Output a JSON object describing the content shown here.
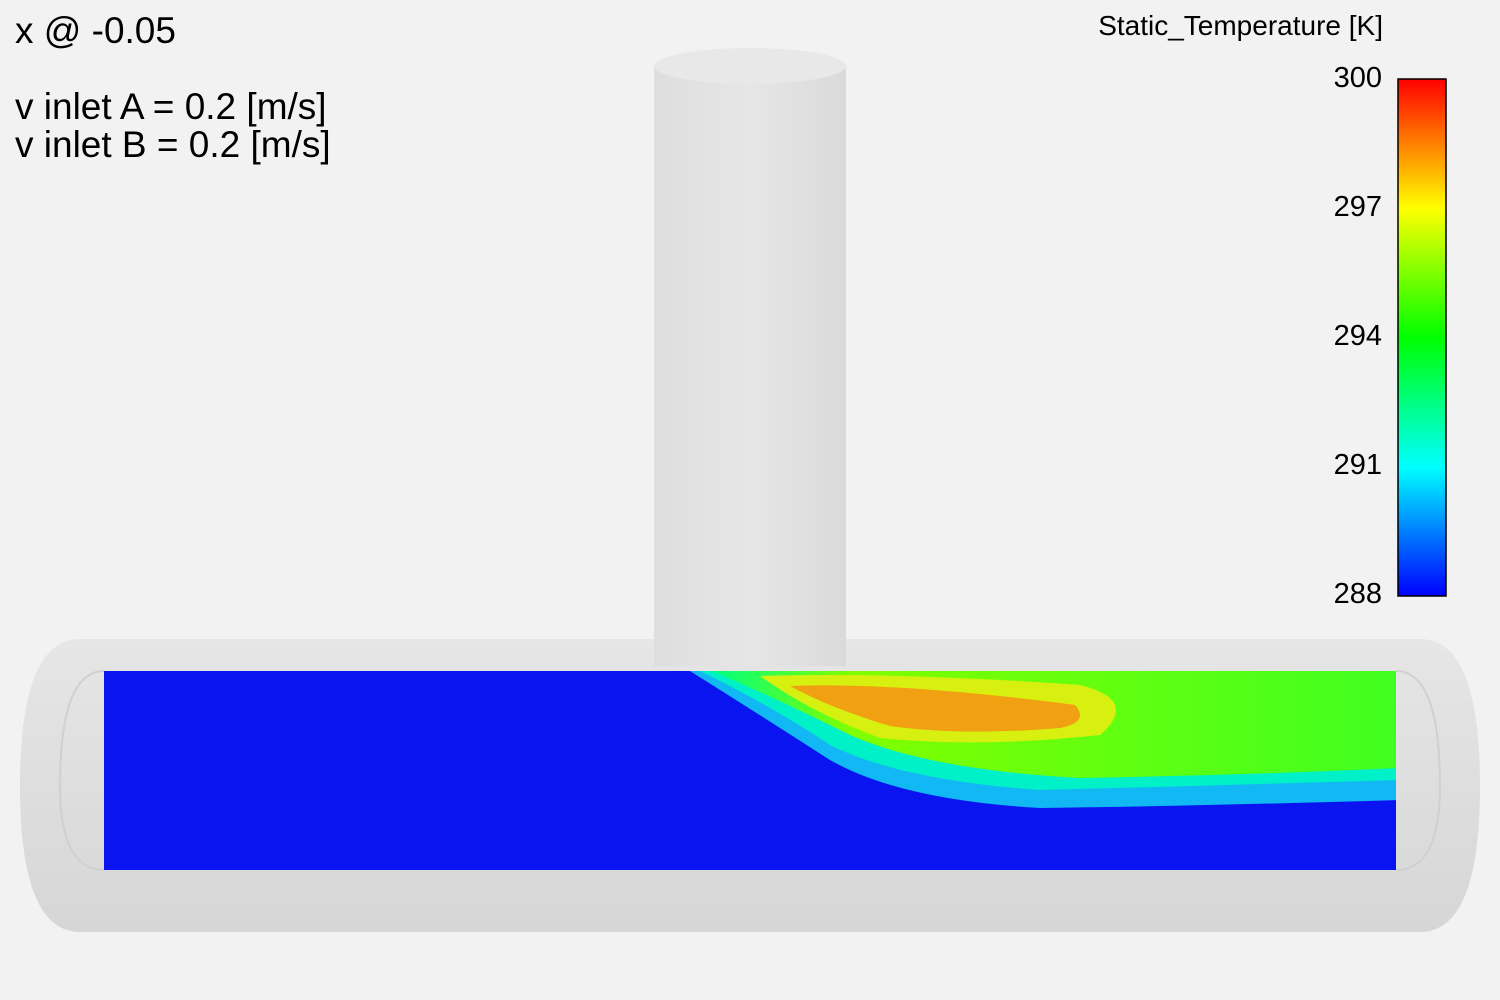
{
  "annotations": {
    "section": "x @ -0.05",
    "inlet_a": "v inlet A = 0.2 [m/s]",
    "inlet_b": "v inlet B = 0.2 [m/s]"
  },
  "legend": {
    "title": "Static_Temperature [K]",
    "variable": "Static_Temperature",
    "unit": "K",
    "min": 288,
    "max": 300,
    "ticks": [
      "300",
      "297",
      "294",
      "291",
      "288"
    ],
    "colormap": [
      "#0000ff",
      "#00ffff",
      "#00ff00",
      "#ffff00",
      "#ff0000"
    ]
  },
  "colors": {
    "background": "#f2f2f2",
    "pipe": "#dcdcdc",
    "cold_fluid": "#0a14f0",
    "hot_core": "#f0a010"
  }
}
